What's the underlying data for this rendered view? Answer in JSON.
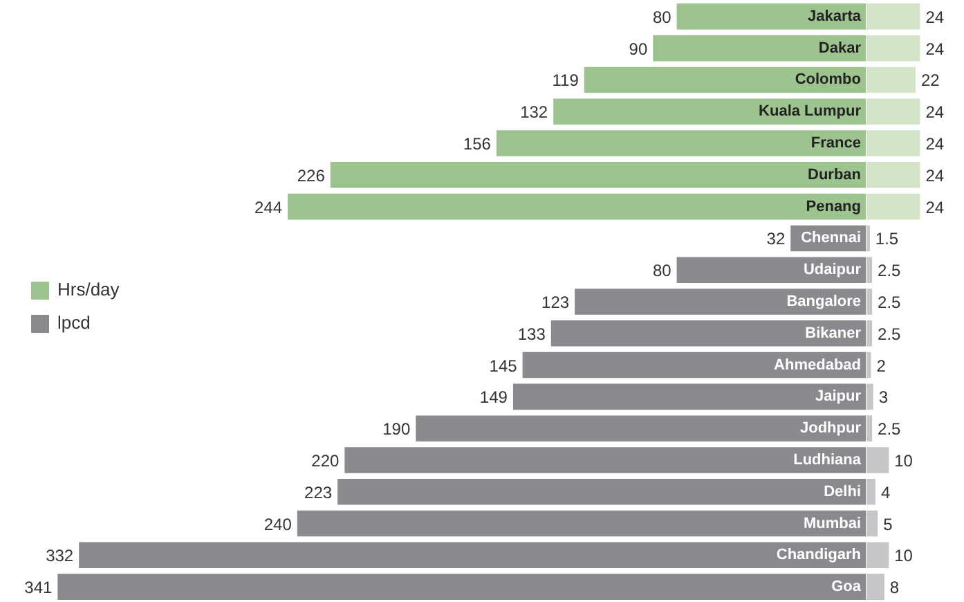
{
  "chart_data": [
    {
      "type": "bar",
      "orientation": "horizontal",
      "categories": [
        "Jakarta",
        "Dakar",
        "Colombo",
        "Kuala Lumpur",
        "France",
        "Durban",
        "Penang",
        "Chennai",
        "Udaipur",
        "Bangalore",
        "Bikaner",
        "Ahmedabad",
        "Jaipur",
        "Jodhpur",
        "Ludhiana",
        "Delhi",
        "Mumbai",
        "Chandigarh",
        "Goa"
      ],
      "xlim": [
        365,
        0
      ],
      "data_labels": true,
      "legend": "left",
      "tick_labels": false,
      "grid": false,
      "series": [
        {
          "name": "lpcd",
          "color": "#8a898e",
          "colors": [
            "#9dc38e",
            "#9dc38e",
            "#9dc38e",
            "#9dc38e",
            "#9dc38e",
            "#9dc38e",
            "#9dc38e",
            "#8a898e",
            "#8a898e",
            "#8a898e",
            "#8a898e",
            "#8a898e",
            "#8a898e",
            "#8a898e",
            "#8a898e",
            "#8a898e",
            "#8a898e",
            "#8a898e",
            "#8a898e"
          ],
          "values": [
            80,
            90,
            119,
            132,
            156,
            226,
            244,
            32,
            80,
            123,
            133,
            145,
            149,
            190,
            220,
            223,
            240,
            332,
            341
          ]
        }
      ]
    },
    {
      "type": "bar",
      "orientation": "horizontal",
      "categories": [
        null,
        null,
        null,
        null,
        null,
        null,
        null,
        null,
        null,
        null,
        null,
        null,
        null,
        null,
        null,
        null,
        null,
        null,
        null
      ],
      "xlim": [
        0,
        44
      ],
      "data_labels": true,
      "tick_labels": false,
      "grid": false,
      "series": [
        {
          "name": "Hrs/day",
          "color": "#9dc38e",
          "colors": [
            "#d3e5c9",
            "#d3e5c9",
            "#d3e5c9",
            "#d3e5c9",
            "#d3e5c9",
            "#d3e5c9",
            "#d3e5c9",
            "#c6c6c8",
            "#c6c6c8",
            "#c6c6c8",
            "#c6c6c8",
            "#c6c6c8",
            "#c6c6c8",
            "#c6c6c8",
            "#c6c6c8",
            "#c6c6c8",
            "#c6c6c8",
            "#c6c6c8",
            "#c6c6c8"
          ],
          "values": [
            24,
            24,
            22,
            24,
            24,
            24,
            24,
            1.5,
            2.5,
            2.5,
            2.5,
            2,
            3,
            2.5,
            10,
            4,
            5,
            10,
            8
          ]
        }
      ]
    }
  ]
}
